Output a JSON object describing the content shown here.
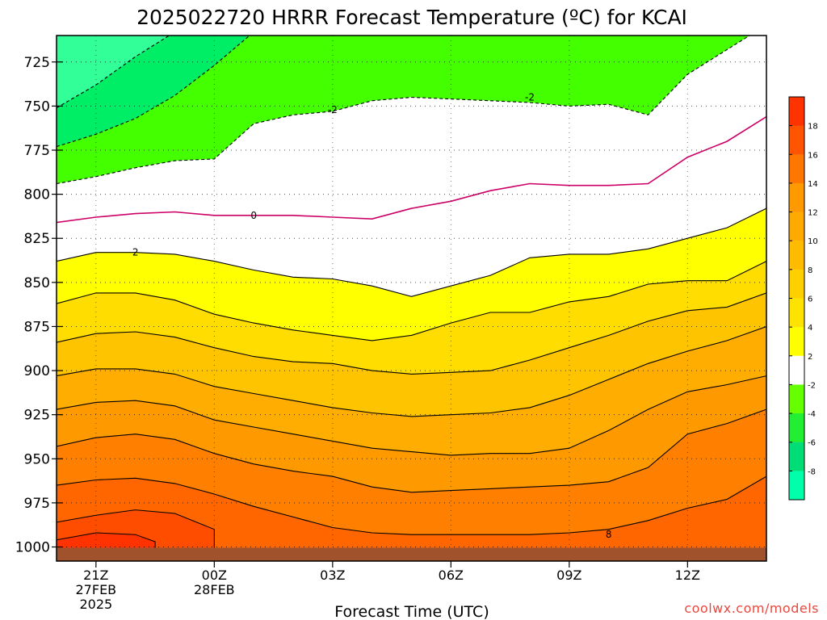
{
  "chart_data": {
    "type": "contour",
    "title": "2025022720 HRRR Forecast Temperature (ºC) for KCAI",
    "xlabel": "Forecast Time (UTC)",
    "credit": "coolwx.com/models",
    "y_axis": {
      "ticks": [
        725,
        750,
        775,
        800,
        825,
        850,
        875,
        900,
        925,
        950,
        975,
        1000
      ],
      "range": [
        710,
        1008
      ],
      "inverted": true
    },
    "x_axis": {
      "range_hours": [
        -1,
        17
      ],
      "ticks": [
        {
          "hour": 0,
          "lines": [
            "21Z",
            "27FEB",
            "2025"
          ]
        },
        {
          "hour": 3,
          "lines": [
            "00Z",
            "28FEB"
          ]
        },
        {
          "hour": 6,
          "lines": [
            "03Z"
          ]
        },
        {
          "hour": 9,
          "lines": [
            "06Z"
          ]
        },
        {
          "hour": 12,
          "lines": [
            "09Z"
          ]
        },
        {
          "hour": 15,
          "lines": [
            "12Z"
          ]
        }
      ]
    },
    "grid": "dotted",
    "ground_color": "#a0522d",
    "colorbar": {
      "labels": [
        "18",
        "16",
        "14",
        "12",
        "10",
        "8",
        "6",
        "4",
        "2",
        "-2",
        "-4",
        "-6",
        "-8"
      ],
      "colors": [
        "#ff3300",
        "#ff5500",
        "#ff7700",
        "#ff9900",
        "#ffaa00",
        "#ffbb00",
        "#ffd000",
        "#ffe300",
        "#ffff00",
        "#ffffff",
        "#66ff00",
        "#22ee33",
        "#00dd77",
        "#00ffaa"
      ]
    },
    "contour_labels": [
      "-2",
      "0",
      "2",
      "8"
    ],
    "hours": [
      -1,
      0,
      1,
      2,
      3,
      4,
      5,
      6,
      7,
      8,
      9,
      10,
      11,
      12,
      13,
      14,
      15,
      16,
      17
    ],
    "isotherms": [
      {
        "value": -8,
        "pressure": [
          751,
          738,
          722,
          708,
          704,
          704,
          704,
          704,
          704,
          704,
          704,
          704,
          704,
          704,
          704,
          704,
          704,
          704,
          704
        ]
      },
      {
        "value": -6,
        "pressure": [
          773,
          766,
          757,
          744,
          727,
          708,
          704,
          704,
          704,
          704,
          704,
          704,
          704,
          704,
          704,
          704,
          704,
          704,
          704
        ]
      },
      {
        "value": -4,
        "pressure": [
          794,
          790,
          785,
          781,
          780,
          760,
          755,
          753,
          747,
          745,
          746,
          747,
          748,
          750,
          749,
          755,
          732,
          718,
          704
        ]
      },
      {
        "value": 0,
        "pressure": [
          816,
          813,
          811,
          810,
          812,
          812,
          812,
          813,
          814,
          808,
          804,
          798,
          794,
          795,
          795,
          794,
          779,
          770,
          756
        ]
      },
      {
        "value": 2,
        "pressure": [
          838,
          833,
          833,
          834,
          838,
          843,
          847,
          848,
          852,
          858,
          852,
          846,
          836,
          834,
          834,
          831,
          825,
          819,
          808
        ]
      },
      {
        "value": 4,
        "pressure": [
          862,
          856,
          856,
          860,
          868,
          873,
          877,
          880,
          883,
          880,
          873,
          867,
          867,
          861,
          858,
          851,
          849,
          849,
          838
        ]
      },
      {
        "value": 6,
        "pressure": [
          884,
          879,
          878,
          881,
          887,
          892,
          895,
          896,
          900,
          902,
          901,
          900,
          894,
          887,
          880,
          872,
          866,
          864,
          856
        ]
      },
      {
        "value": 8,
        "pressure": [
          903,
          899,
          899,
          902,
          909,
          913,
          917,
          921,
          924,
          926,
          925,
          924,
          921,
          914,
          905,
          896,
          889,
          883,
          875
        ]
      },
      {
        "value": 10,
        "pressure": [
          922,
          918,
          917,
          920,
          928,
          932,
          936,
          940,
          944,
          946,
          948,
          947,
          947,
          944,
          934,
          922,
          912,
          908,
          903
        ]
      },
      {
        "value": 12,
        "pressure": [
          943,
          938,
          936,
          939,
          947,
          953,
          957,
          960,
          966,
          969,
          968,
          967,
          966,
          965,
          963,
          955,
          936,
          930,
          922
        ]
      },
      {
        "value": 14,
        "pressure": [
          965,
          962,
          961,
          964,
          970,
          977,
          983,
          989,
          992,
          993,
          993,
          993,
          993,
          992,
          990,
          985,
          978,
          973,
          960
        ]
      }
    ],
    "warm_cells": [
      {
        "value": 14,
        "pressure_top": [
          965,
          962,
          961,
          964,
          970,
          977,
          983,
          989
        ],
        "hours": [
          -1,
          0,
          1,
          2,
          3,
          4,
          5,
          6
        ]
      },
      {
        "value": 16,
        "pressure_top": [
          986,
          982,
          979,
          981,
          990
        ],
        "hours": [
          -1,
          0,
          1,
          2,
          3
        ]
      },
      {
        "value": 18,
        "pressure_top": [
          996,
          992,
          993,
          997
        ],
        "hours": [
          -1,
          0,
          1,
          1.5
        ]
      }
    ]
  }
}
